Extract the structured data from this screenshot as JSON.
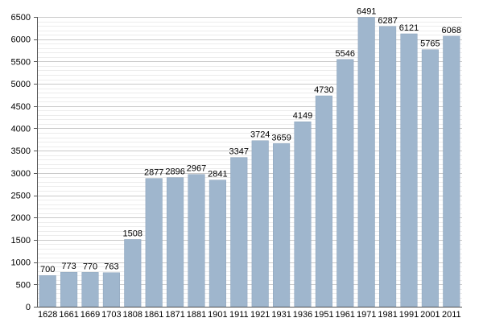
{
  "colors": {
    "bar": "#9fb6cd",
    "bar_stroke": "#8aa2ba",
    "grid": "#c9c9c9",
    "axis": "#555555"
  },
  "chart_data": {
    "type": "bar",
    "title": "",
    "xlabel": "",
    "ylabel": "",
    "ylim": [
      0,
      6500
    ],
    "yticks": [
      0,
      500,
      1000,
      1500,
      2000,
      2500,
      3000,
      3500,
      4000,
      4500,
      5000,
      5500,
      6000,
      6500
    ],
    "minor_grid_step": 100,
    "grid": true,
    "legend": false,
    "categories": [
      "1628",
      "1661",
      "1669",
      "1703",
      "1808",
      "1861",
      "1871",
      "1881",
      "1901",
      "1911",
      "1921",
      "1931",
      "1936",
      "1951",
      "1961",
      "1971",
      "1981",
      "1991",
      "2001",
      "2011"
    ],
    "values": [
      700,
      773,
      770,
      763,
      1508,
      2877,
      2896,
      2967,
      2841,
      3347,
      3724,
      3659,
      4149,
      4730,
      5546,
      6491,
      6287,
      6121,
      5765,
      6068
    ]
  }
}
